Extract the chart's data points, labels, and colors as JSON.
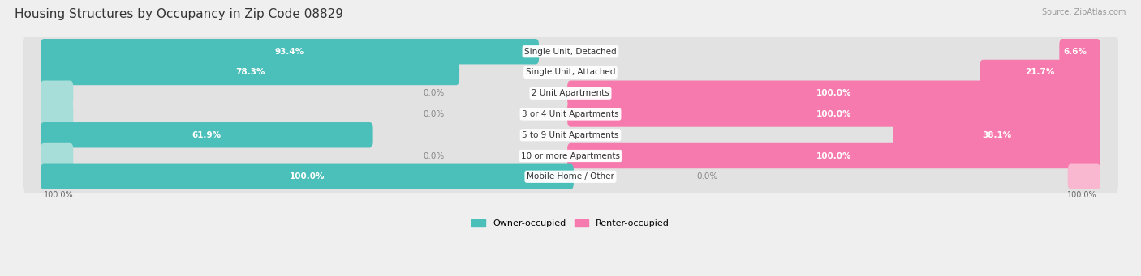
{
  "title": "Housing Structures by Occupancy in Zip Code 08829",
  "source": "Source: ZipAtlas.com",
  "categories": [
    "Single Unit, Detached",
    "Single Unit, Attached",
    "2 Unit Apartments",
    "3 or 4 Unit Apartments",
    "5 to 9 Unit Apartments",
    "10 or more Apartments",
    "Mobile Home / Other"
  ],
  "owner_pct": [
    93.4,
    78.3,
    0.0,
    0.0,
    61.9,
    0.0,
    100.0
  ],
  "renter_pct": [
    6.6,
    21.7,
    100.0,
    100.0,
    38.1,
    100.0,
    0.0
  ],
  "owner_color": "#4BBFBA",
  "renter_color": "#F67AAD",
  "owner_color_light": "#A8DED9",
  "renter_color_light": "#F9B8D0",
  "bg_color": "#EFEFEF",
  "row_bg_color": "#E2E2E2",
  "bar_height": 0.62,
  "title_fontsize": 11,
  "cat_fontsize": 7.5,
  "pct_fontsize": 7.5,
  "axis_label_fontsize": 7,
  "legend_fontsize": 8,
  "source_fontsize": 7
}
